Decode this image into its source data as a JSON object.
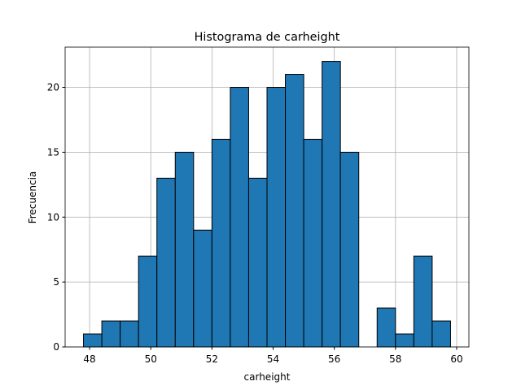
{
  "chart_data": {
    "type": "histogram",
    "title": "Histograma de carheight",
    "xlabel": "carheight",
    "ylabel": "Frecuencia",
    "bins": [
      47.8,
      48.4,
      49.0,
      49.6,
      50.2,
      50.8,
      51.4,
      52.0,
      52.6,
      53.2,
      53.8,
      54.4,
      55.0,
      55.6,
      56.2,
      56.8,
      57.4,
      58.0,
      58.6,
      59.2,
      59.8
    ],
    "values": [
      1,
      2,
      2,
      7,
      13,
      15,
      9,
      16,
      20,
      13,
      20,
      21,
      16,
      22,
      15,
      0,
      3,
      1,
      7,
      2
    ],
    "color": "#1f77b4",
    "edgecolor": "#000000",
    "xlim": [
      47.2,
      60.4
    ],
    "xticks": [
      48,
      50,
      52,
      54,
      56,
      58,
      60
    ],
    "ylim": [
      0,
      23.1
    ],
    "yticks": [
      0,
      5,
      10,
      15,
      20
    ],
    "grid": true
  }
}
